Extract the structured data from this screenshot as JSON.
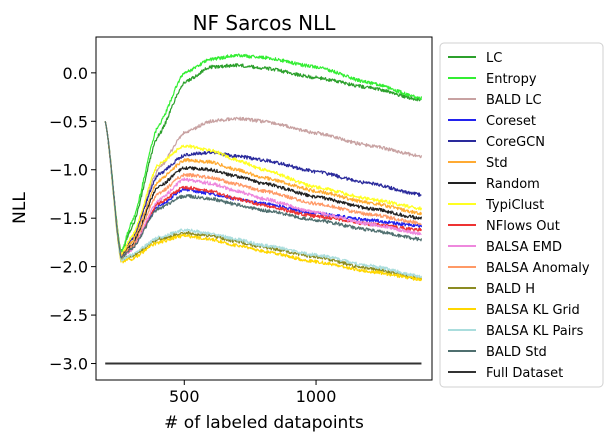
{
  "chart_data": {
    "type": "line",
    "title": "NF Sarcos NLL",
    "xlabel": "# of labeled datapoints",
    "ylabel": "NLL",
    "xlim": [
      165,
      1440
    ],
    "ylim": [
      -3.17,
      0.37
    ],
    "xticks": [
      500,
      1000
    ],
    "xtick_labels": [
      "500",
      "1000"
    ],
    "yticks": [
      0.0,
      -0.5,
      -1.0,
      -1.5,
      -2.0,
      -2.5,
      -3.0
    ],
    "ytick_labels": [
      "0.0",
      "−0.5",
      "−1.0",
      "−1.5",
      "−2.0",
      "−2.5",
      "−3.0"
    ],
    "grid": false,
    "legend_position": "right, outside plot",
    "series": [
      {
        "name": "LC",
        "color": "#2ca02c",
        "x": [
          200,
          260,
          300,
          400,
          500,
          600,
          700,
          800,
          1000,
          1200,
          1400
        ],
        "y": [
          -0.5,
          -1.85,
          -1.6,
          -0.65,
          -0.1,
          0.06,
          0.08,
          0.05,
          -0.05,
          -0.15,
          -0.28
        ]
      },
      {
        "name": "Entropy",
        "color": "#33ee33",
        "x": [
          200,
          260,
          300,
          400,
          500,
          600,
          700,
          800,
          1000,
          1200,
          1400
        ],
        "y": [
          -0.5,
          -1.85,
          -1.55,
          -0.55,
          0.0,
          0.14,
          0.18,
          0.16,
          0.06,
          -0.1,
          -0.26
        ]
      },
      {
        "name": "BALD LC",
        "color": "#c8a2a2",
        "x": [
          200,
          260,
          300,
          400,
          500,
          600,
          700,
          800,
          1000,
          1200,
          1400
        ],
        "y": [
          -0.5,
          -1.88,
          -1.75,
          -1.0,
          -0.62,
          -0.5,
          -0.47,
          -0.5,
          -0.62,
          -0.75,
          -0.86
        ]
      },
      {
        "name": "Coreset",
        "color": "#2222ee",
        "x": [
          200,
          260,
          300,
          400,
          500,
          600,
          700,
          800,
          1000,
          1200,
          1400
        ],
        "y": [
          -0.5,
          -1.9,
          -1.8,
          -1.38,
          -1.2,
          -1.25,
          -1.3,
          -1.35,
          -1.45,
          -1.52,
          -1.58
        ]
      },
      {
        "name": "CoreGCN",
        "color": "#2a2a9c",
        "x": [
          200,
          260,
          300,
          400,
          500,
          600,
          700,
          800,
          1000,
          1200,
          1400
        ],
        "y": [
          -0.5,
          -1.88,
          -1.72,
          -1.05,
          -0.85,
          -0.82,
          -0.86,
          -0.9,
          -1.02,
          -1.14,
          -1.26
        ]
      },
      {
        "name": "Std",
        "color": "#ffaa33",
        "x": [
          200,
          260,
          300,
          400,
          500,
          600,
          700,
          800,
          1000,
          1200,
          1400
        ],
        "y": [
          -0.5,
          -1.9,
          -1.75,
          -1.12,
          -0.9,
          -0.92,
          -1.0,
          -1.08,
          -1.22,
          -1.34,
          -1.45
        ]
      },
      {
        "name": "Random",
        "color": "#222222",
        "x": [
          200,
          260,
          300,
          400,
          500,
          600,
          700,
          800,
          1000,
          1200,
          1400
        ],
        "y": [
          -0.5,
          -1.9,
          -1.78,
          -1.18,
          -0.98,
          -1.0,
          -1.07,
          -1.14,
          -1.28,
          -1.4,
          -1.5
        ]
      },
      {
        "name": "TypiClust",
        "color": "#ffff22",
        "x": [
          200,
          260,
          300,
          400,
          500,
          600,
          700,
          800,
          1000,
          1200,
          1400
        ],
        "y": [
          -0.5,
          -1.88,
          -1.7,
          -0.95,
          -0.75,
          -0.8,
          -0.9,
          -1.0,
          -1.18,
          -1.3,
          -1.4
        ]
      },
      {
        "name": "NFlows Out",
        "color": "#ee3333",
        "x": [
          200,
          260,
          300,
          400,
          500,
          600,
          700,
          800,
          1000,
          1200,
          1400
        ],
        "y": [
          -0.5,
          -1.9,
          -1.82,
          -1.35,
          -1.18,
          -1.22,
          -1.3,
          -1.37,
          -1.48,
          -1.56,
          -1.62
        ]
      },
      {
        "name": "BALSA EMD",
        "color": "#ee88dd",
        "x": [
          200,
          260,
          300,
          400,
          500,
          600,
          700,
          800,
          1000,
          1200,
          1400
        ],
        "y": [
          -0.5,
          -1.9,
          -1.83,
          -1.32,
          -1.1,
          -1.14,
          -1.22,
          -1.3,
          -1.44,
          -1.56,
          -1.66
        ]
      },
      {
        "name": "BALSA Anomaly",
        "color": "#ff9966",
        "x": [
          200,
          260,
          300,
          400,
          500,
          600,
          700,
          800,
          1000,
          1200,
          1400
        ],
        "y": [
          -0.5,
          -1.9,
          -1.8,
          -1.25,
          -1.05,
          -1.08,
          -1.15,
          -1.22,
          -1.35,
          -1.46,
          -1.55
        ]
      },
      {
        "name": "BALD H",
        "color": "#8b8b22",
        "x": [
          200,
          260,
          300,
          400,
          500,
          600,
          700,
          800,
          1000,
          1200,
          1400
        ],
        "y": [
          -0.5,
          -1.92,
          -1.9,
          -1.72,
          -1.65,
          -1.68,
          -1.74,
          -1.8,
          -1.9,
          -2.02,
          -2.12
        ]
      },
      {
        "name": "BALSA KL Grid",
        "color": "#ffd700",
        "x": [
          200,
          260,
          300,
          400,
          500,
          600,
          700,
          800,
          1000,
          1200,
          1400
        ],
        "y": [
          -0.5,
          -1.95,
          -1.92,
          -1.75,
          -1.68,
          -1.72,
          -1.78,
          -1.84,
          -1.95,
          -2.05,
          -2.13
        ]
      },
      {
        "name": "BALSA KL Pairs",
        "color": "#aadddd",
        "x": [
          200,
          260,
          300,
          400,
          500,
          600,
          700,
          800,
          1000,
          1200,
          1400
        ],
        "y": [
          -0.5,
          -1.93,
          -1.88,
          -1.7,
          -1.62,
          -1.66,
          -1.72,
          -1.78,
          -1.88,
          -1.99,
          -2.1
        ]
      },
      {
        "name": "BALD Std",
        "color": "#4f6f6f",
        "x": [
          200,
          260,
          300,
          400,
          500,
          600,
          700,
          800,
          1000,
          1200,
          1400
        ],
        "y": [
          -0.5,
          -1.9,
          -1.82,
          -1.4,
          -1.27,
          -1.3,
          -1.36,
          -1.42,
          -1.52,
          -1.62,
          -1.72
        ]
      },
      {
        "name": "Full Dataset",
        "color": "#333333",
        "x": [
          200,
          1400
        ],
        "y": [
          -3.0,
          -3.0
        ]
      }
    ]
  }
}
